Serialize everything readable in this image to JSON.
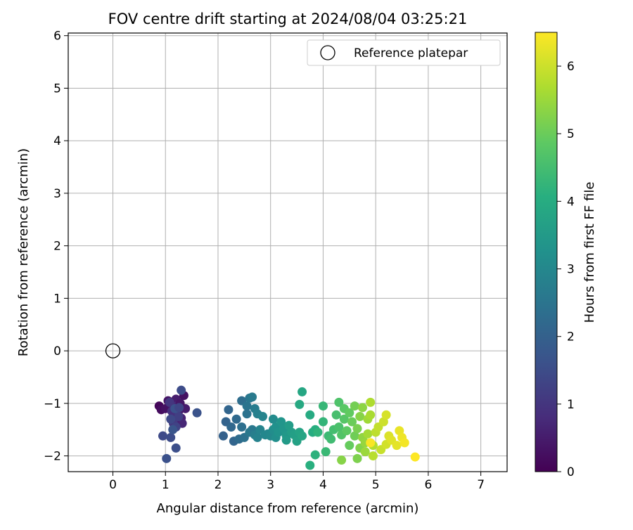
{
  "chart_data": {
    "type": "scatter",
    "title": "FOV centre drift starting at 2024/08/04 03:25:21",
    "xlabel": "Angular distance from reference (arcmin)",
    "ylabel": "Rotation from reference (arcmin)",
    "xlim": [
      -0.85,
      7.5
    ],
    "ylim": [
      -2.3,
      6.05
    ],
    "xticks": [
      0,
      1,
      2,
      3,
      4,
      5,
      6,
      7
    ],
    "yticks": [
      -2,
      -1,
      0,
      1,
      2,
      3,
      4,
      5,
      6
    ],
    "grid": true,
    "legend": {
      "position": "top-right",
      "entries": [
        "Reference platepar"
      ]
    },
    "colorbar": {
      "label": "Hours from first FF file",
      "colormap": "viridis",
      "range": [
        0,
        6.5
      ],
      "ticks": [
        0,
        1,
        2,
        3,
        4,
        5,
        6
      ]
    },
    "reference_point": {
      "name": "Reference platepar",
      "x": 0,
      "y": 0
    },
    "series": [
      {
        "points": [
          [
            0.88,
            -1.05,
            0.1
          ],
          [
            0.92,
            -1.12,
            0.2
          ],
          [
            1.0,
            -1.1,
            0.3
          ],
          [
            1.05,
            -0.95,
            0.35
          ],
          [
            1.1,
            -1.0,
            0.4
          ],
          [
            1.15,
            -1.2,
            0.45
          ],
          [
            1.2,
            -0.92,
            0.5
          ],
          [
            1.25,
            -1.15,
            0.55
          ],
          [
            1.3,
            -1.28,
            0.6
          ],
          [
            1.35,
            -0.85,
            0.3
          ],
          [
            1.32,
            -1.38,
            0.7
          ],
          [
            1.38,
            -1.1,
            0.5
          ],
          [
            1.18,
            -1.3,
            0.6
          ],
          [
            1.22,
            -1.05,
            0.8
          ],
          [
            1.12,
            -1.15,
            0.9
          ],
          [
            1.28,
            -1.0,
            0.4
          ],
          [
            1.08,
            -0.98,
            1.0
          ],
          [
            1.15,
            -1.38,
            1.1
          ],
          [
            1.2,
            -1.45,
            1.3
          ],
          [
            1.25,
            -1.25,
            1.2
          ],
          [
            1.1,
            -1.3,
            1.4
          ],
          [
            1.3,
            -0.75,
            1.5
          ],
          [
            1.18,
            -1.1,
            1.6
          ],
          [
            0.95,
            -1.62,
            1.45
          ],
          [
            1.1,
            -1.65,
            1.5
          ],
          [
            1.2,
            -1.85,
            1.55
          ],
          [
            1.02,
            -2.05,
            1.6
          ],
          [
            1.6,
            -1.18,
            1.65
          ],
          [
            1.14,
            -1.5,
            1.7
          ],
          [
            1.26,
            -1.08,
            1.35
          ],
          [
            2.1,
            -1.62,
            2.0
          ],
          [
            2.15,
            -1.35,
            2.05
          ],
          [
            2.2,
            -1.12,
            2.1
          ],
          [
            2.25,
            -1.45,
            2.15
          ],
          [
            2.3,
            -1.72,
            2.1
          ],
          [
            2.35,
            -1.3,
            2.2
          ],
          [
            2.4,
            -1.68,
            2.25
          ],
          [
            2.45,
            -0.95,
            2.3
          ],
          [
            2.45,
            -1.45,
            2.35
          ],
          [
            2.5,
            -1.65,
            2.4
          ],
          [
            2.55,
            -1.05,
            2.5
          ],
          [
            2.55,
            -1.2,
            2.45
          ],
          [
            2.6,
            -0.9,
            2.55
          ],
          [
            2.6,
            -1.55,
            2.6
          ],
          [
            2.65,
            -1.5,
            2.6
          ],
          [
            2.65,
            -0.88,
            2.65
          ],
          [
            2.7,
            -1.1,
            2.7
          ],
          [
            2.7,
            -1.6,
            2.75
          ],
          [
            2.75,
            -1.2,
            2.8
          ],
          [
            2.75,
            -1.65,
            2.85
          ],
          [
            2.8,
            -1.5,
            2.9
          ],
          [
            2.85,
            -1.25,
            2.9
          ],
          [
            2.9,
            -1.6,
            3.0
          ],
          [
            2.95,
            -1.58,
            3.0
          ],
          [
            3.0,
            -1.62,
            3.05
          ],
          [
            3.05,
            -1.3,
            3.1
          ],
          [
            3.05,
            -1.5,
            3.15
          ],
          [
            3.1,
            -1.65,
            3.2
          ],
          [
            3.1,
            -1.45,
            3.25
          ],
          [
            3.15,
            -1.55,
            3.3
          ],
          [
            3.2,
            -1.35,
            3.35
          ],
          [
            3.25,
            -1.48,
            3.4
          ],
          [
            3.3,
            -1.62,
            3.45
          ],
          [
            3.3,
            -1.7,
            3.5
          ],
          [
            3.35,
            -1.42,
            3.55
          ],
          [
            3.4,
            -1.55,
            3.6
          ],
          [
            3.45,
            -1.6,
            3.65
          ],
          [
            3.5,
            -1.72,
            3.7
          ],
          [
            3.55,
            -1.55,
            3.75
          ],
          [
            3.6,
            -1.62,
            3.8
          ],
          [
            3.6,
            -0.78,
            3.85
          ],
          [
            3.55,
            -1.02,
            3.9
          ],
          [
            3.75,
            -1.22,
            3.95
          ],
          [
            3.8,
            -1.55,
            4.0
          ],
          [
            3.85,
            -1.5,
            4.05
          ],
          [
            3.75,
            -2.18,
            4.1
          ],
          [
            3.85,
            -1.98,
            4.15
          ],
          [
            3.9,
            -1.55,
            4.2
          ],
          [
            4.0,
            -1.35,
            4.25
          ],
          [
            4.0,
            -1.05,
            4.3
          ],
          [
            4.05,
            -1.92,
            4.35
          ],
          [
            4.1,
            -1.62,
            4.4
          ],
          [
            4.15,
            -1.68,
            4.45
          ],
          [
            4.2,
            -1.5,
            4.5
          ],
          [
            4.25,
            -1.22,
            4.55
          ],
          [
            4.3,
            -1.45,
            4.6
          ],
          [
            4.3,
            -0.98,
            4.65
          ],
          [
            4.35,
            -1.6,
            4.7
          ],
          [
            4.4,
            -1.3,
            4.75
          ],
          [
            4.4,
            -1.1,
            4.8
          ],
          [
            4.45,
            -1.52,
            4.85
          ],
          [
            4.5,
            -1.18,
            4.9
          ],
          [
            4.5,
            -1.8,
            4.95
          ],
          [
            4.55,
            -1.35,
            5.0
          ],
          [
            4.6,
            -1.62,
            5.05
          ],
          [
            4.6,
            -1.05,
            5.1
          ],
          [
            4.65,
            -1.48,
            5.15
          ],
          [
            4.65,
            -2.05,
            5.2
          ],
          [
            4.7,
            -1.85,
            5.25
          ],
          [
            4.7,
            -1.25,
            5.3
          ],
          [
            4.75,
            -1.08,
            5.35
          ],
          [
            4.75,
            -1.65,
            5.4
          ],
          [
            4.8,
            -1.75,
            5.45
          ],
          [
            4.8,
            -1.92,
            5.5
          ],
          [
            4.85,
            -1.3,
            5.55
          ],
          [
            4.85,
            -1.58,
            5.6
          ],
          [
            4.9,
            -1.22,
            5.65
          ],
          [
            4.9,
            -0.98,
            5.7
          ],
          [
            4.95,
            -1.8,
            5.75
          ],
          [
            4.95,
            -2.0,
            5.8
          ],
          [
            5.0,
            -1.55,
            5.85
          ],
          [
            5.05,
            -1.45,
            5.9
          ],
          [
            5.1,
            -1.88,
            5.95
          ],
          [
            5.15,
            -1.35,
            6.0
          ],
          [
            5.2,
            -1.78,
            6.05
          ],
          [
            5.2,
            -1.22,
            6.1
          ],
          [
            5.25,
            -1.62,
            6.15
          ],
          [
            5.3,
            -1.7,
            6.2
          ],
          [
            5.4,
            -1.8,
            6.25
          ],
          [
            5.45,
            -1.52,
            6.3
          ],
          [
            5.5,
            -1.65,
            6.35
          ],
          [
            5.55,
            -1.75,
            6.4
          ],
          [
            4.9,
            -1.75,
            6.45
          ],
          [
            5.75,
            -2.02,
            6.5
          ],
          [
            4.35,
            -2.08,
            5.3
          ]
        ]
      }
    ]
  }
}
